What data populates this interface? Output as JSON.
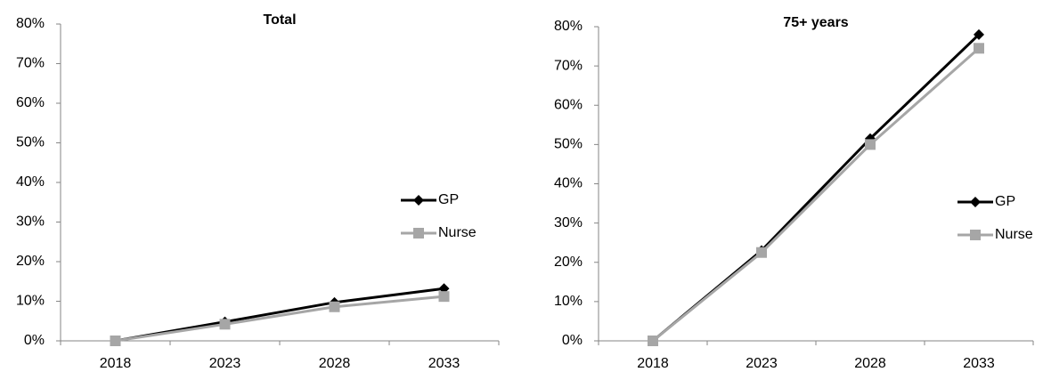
{
  "chart_data": [
    {
      "type": "line",
      "title": "Total",
      "categories": [
        "2018",
        "2023",
        "2028",
        "2033"
      ],
      "series": [
        {
          "name": "GP",
          "color": "#000000",
          "marker": "diamond",
          "values": [
            0,
            4.8,
            9.7,
            13.2
          ]
        },
        {
          "name": "Nurse",
          "color": "#a6a6a6",
          "marker": "square",
          "values": [
            0,
            4.2,
            8.6,
            11.2
          ]
        }
      ],
      "ylim": [
        0,
        80
      ],
      "yticks": [
        {
          "value": 0,
          "label": "0%"
        },
        {
          "value": 10,
          "label": "10%"
        },
        {
          "value": 20,
          "label": "20%"
        },
        {
          "value": 30,
          "label": "30%"
        },
        {
          "value": 40,
          "label": "40%"
        },
        {
          "value": 50,
          "label": "50%"
        },
        {
          "value": 60,
          "label": "60%"
        },
        {
          "value": 70,
          "label": "70%"
        },
        {
          "value": 80,
          "label": "80%"
        }
      ],
      "grid": false,
      "legend": "right"
    },
    {
      "type": "line",
      "title": "75+ years",
      "categories": [
        "2018",
        "2023",
        "2028",
        "2033"
      ],
      "series": [
        {
          "name": "GP",
          "color": "#000000",
          "marker": "diamond",
          "values": [
            0,
            23,
            51.5,
            78
          ]
        },
        {
          "name": "Nurse",
          "color": "#a6a6a6",
          "marker": "square",
          "values": [
            0,
            22.5,
            50,
            74.5
          ]
        }
      ],
      "ylim": [
        0,
        80
      ],
      "yticks": [
        {
          "value": 0,
          "label": "0%"
        },
        {
          "value": 10,
          "label": "10%"
        },
        {
          "value": 20,
          "label": "20%"
        },
        {
          "value": 30,
          "label": "30%"
        },
        {
          "value": 40,
          "label": "40%"
        },
        {
          "value": 50,
          "label": "50%"
        },
        {
          "value": 60,
          "label": "60%"
        },
        {
          "value": 70,
          "label": "70%"
        },
        {
          "value": 80,
          "label": "80%"
        }
      ],
      "grid": false,
      "legend": "right"
    }
  ]
}
